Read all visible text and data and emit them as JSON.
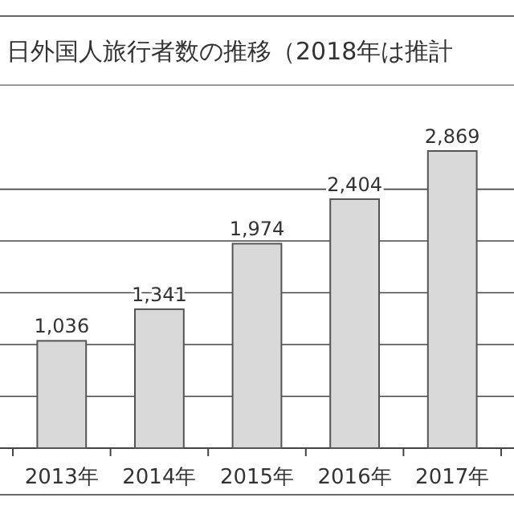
{
  "chart_data": {
    "type": "bar",
    "title": "日外国人旅行者数の推移（2018年は推計",
    "categories": [
      "2013年",
      "2014年",
      "2015年",
      "2016年",
      "2017年"
    ],
    "values": [
      1036,
      1341,
      1974,
      2404,
      2869
    ],
    "color": "#d9d9d9",
    "value_labels": [
      "1,036",
      "1,341",
      "1,974",
      "2,404",
      "2,869"
    ],
    "grid": "y",
    "tick_labels": "x"
  }
}
